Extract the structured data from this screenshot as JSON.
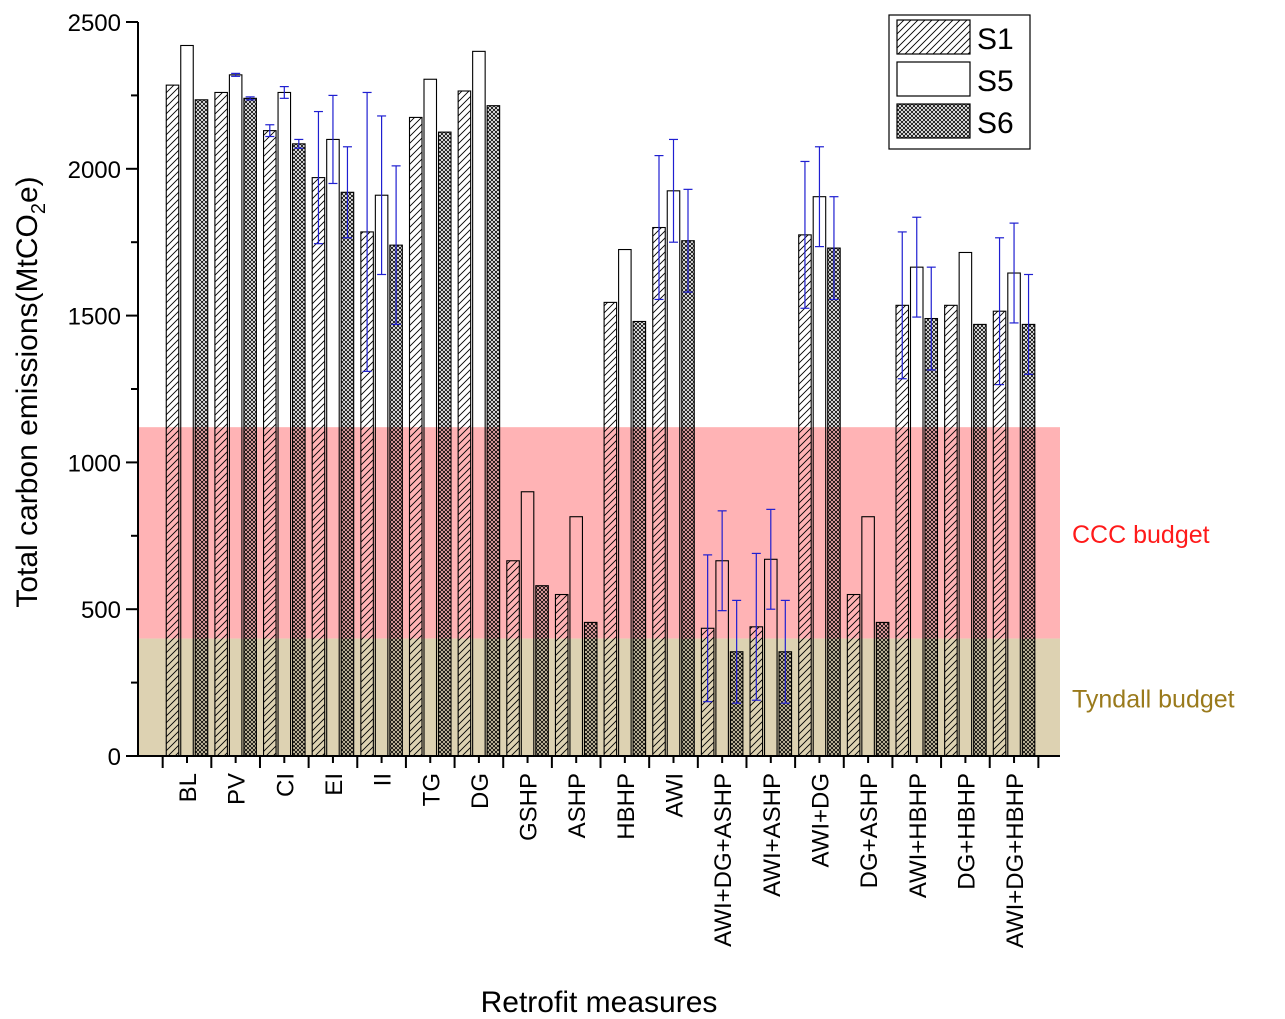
{
  "chart_data": {
    "type": "bar",
    "xlabel": "Retrofit measures",
    "ylabel_prefix": "Total carbon emissions(MtCO",
    "ylabel_sub": "2",
    "ylabel_suffix": "e)",
    "ylim": [
      0,
      2500
    ],
    "yticks": [
      0,
      500,
      1000,
      1500,
      2000,
      2500
    ],
    "grid": false,
    "legend_position": "top-right",
    "categories": [
      "BL",
      "PV",
      "CI",
      "EI",
      "II",
      "TG",
      "DG",
      "GSHP",
      "ASHP",
      "HBHP",
      "AWI",
      "AWI+DG+ASHP",
      "AWI+ASHP",
      "AWI+DG",
      "DG+ASHP",
      "AWI+HBHP",
      "DG+HBHP",
      "AWI+DG+HBHP"
    ],
    "series": [
      {
        "name": "S1",
        "pattern": "diagonal-hatch",
        "values": [
          2285,
          2260,
          2130,
          1970,
          1785,
          2175,
          2265,
          665,
          550,
          1545,
          1800,
          435,
          440,
          1775,
          550,
          1535,
          1535,
          1515
        ],
        "error": [
          null,
          null,
          20,
          225,
          475,
          null,
          null,
          null,
          null,
          null,
          245,
          250,
          250,
          250,
          null,
          250,
          null,
          250
        ]
      },
      {
        "name": "S5",
        "pattern": "plain",
        "values": [
          2420,
          2320,
          2260,
          2100,
          1910,
          2305,
          2400,
          900,
          815,
          1725,
          1925,
          665,
          670,
          1905,
          815,
          1665,
          1715,
          1645
        ],
        "error": [
          null,
          5,
          20,
          150,
          270,
          null,
          null,
          null,
          null,
          null,
          175,
          170,
          170,
          170,
          null,
          170,
          null,
          170
        ]
      },
      {
        "name": "S6",
        "pattern": "cross-hatch",
        "values": [
          2235,
          2240,
          2085,
          1920,
          1740,
          2125,
          2215,
          580,
          455,
          1480,
          1755,
          355,
          355,
          1730,
          455,
          1490,
          1470,
          1470
        ],
        "error": [
          null,
          5,
          15,
          155,
          270,
          null,
          null,
          null,
          null,
          null,
          175,
          175,
          175,
          175,
          null,
          175,
          null,
          170
        ]
      }
    ],
    "bands": [
      {
        "label": "CCC budget",
        "from": 400,
        "to": 1120,
        "color": "#ffb3b5",
        "label_color": "#ff1a1a"
      },
      {
        "label": "Tyndall budget",
        "from": 0,
        "to": 400,
        "color": "#ddd2b2",
        "label_color": "#9a7a1c"
      }
    ],
    "error_color": "#1f1fd1"
  }
}
